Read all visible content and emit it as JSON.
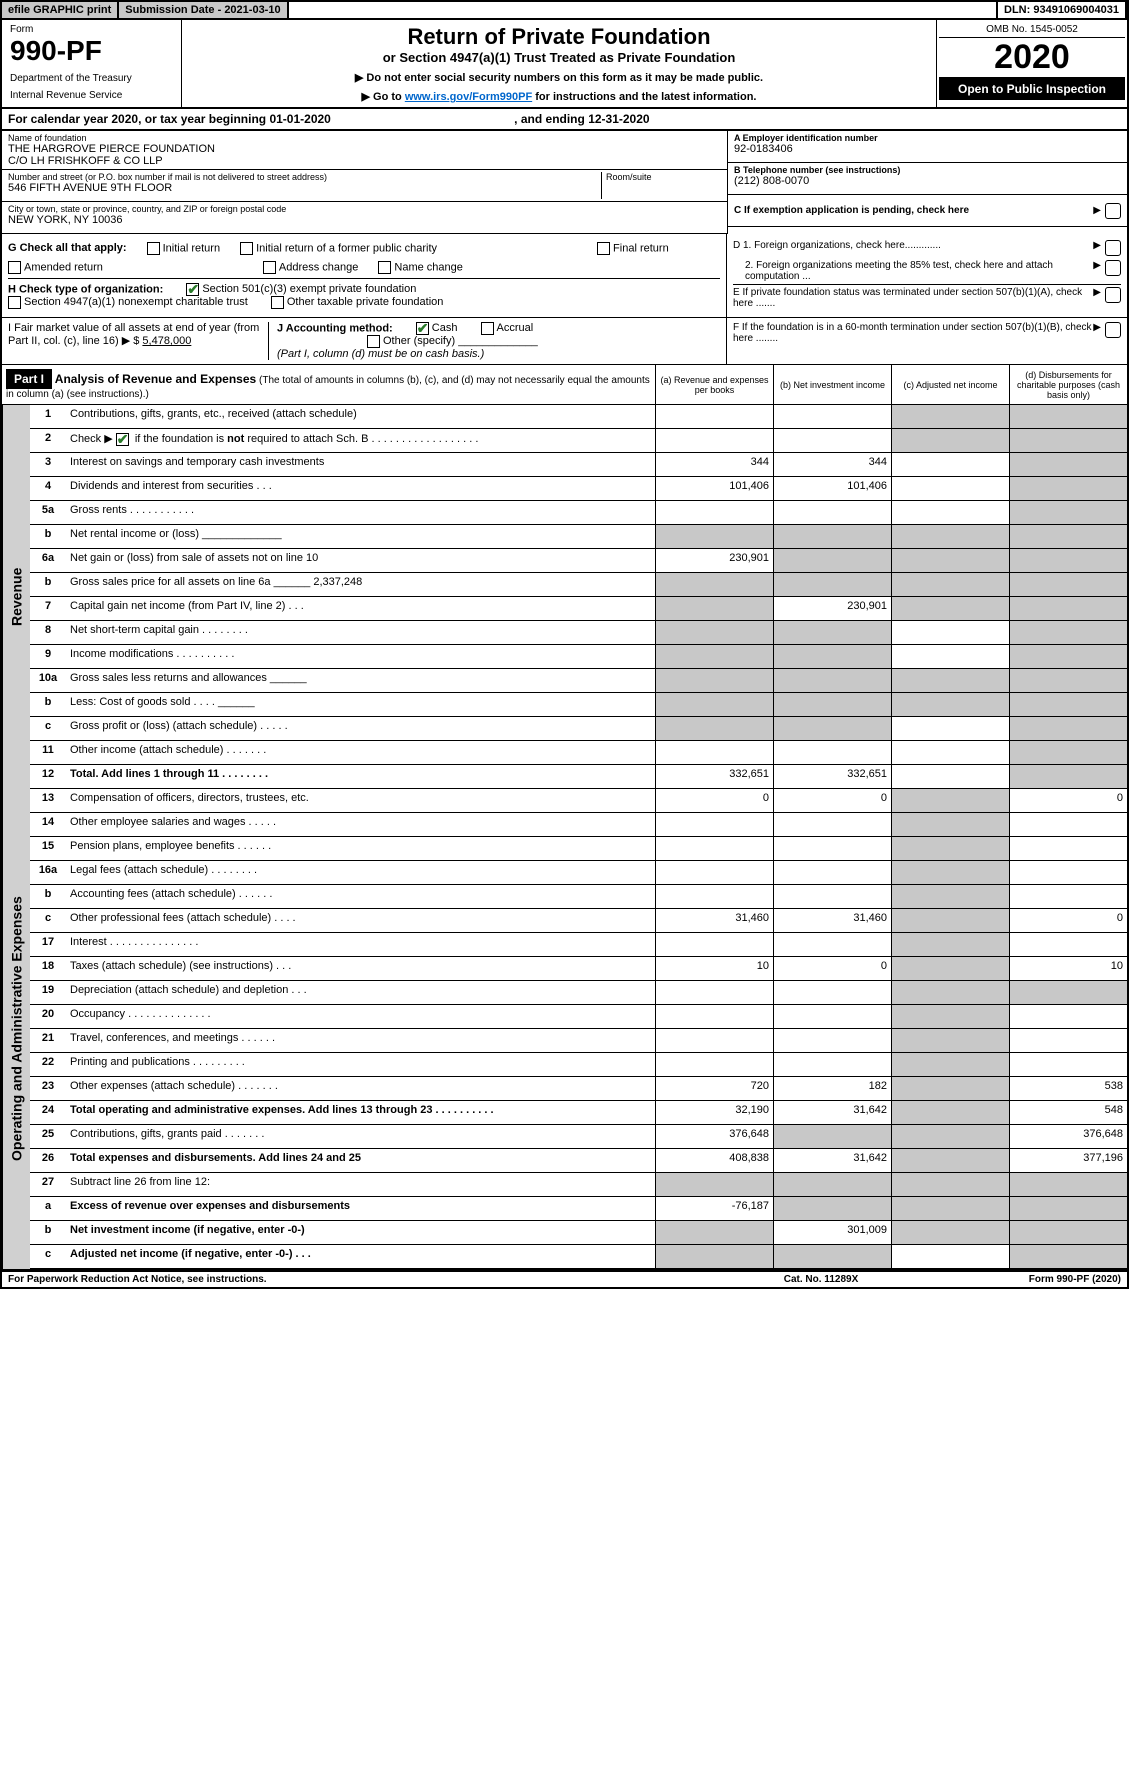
{
  "topbar": {
    "efile": "efile GRAPHIC print",
    "subdate_label": "Submission Date - 2021-03-10",
    "dln": "DLN: 93491069004031"
  },
  "header": {
    "form_label": "Form",
    "form_num": "990-PF",
    "dept1": "Department of the Treasury",
    "dept2": "Internal Revenue Service",
    "title": "Return of Private Foundation",
    "subtitle": "or Section 4947(a)(1) Trust Treated as Private Foundation",
    "note1": "▶ Do not enter social security numbers on this form as it may be made public.",
    "note2_pre": "▶ Go to ",
    "note2_link": "www.irs.gov/Form990PF",
    "note2_post": " for instructions and the latest information.",
    "omb": "OMB No. 1545-0052",
    "year": "2020",
    "open_pub": "Open to Public Inspection"
  },
  "cal_year": {
    "pre": "For calendar year 2020, or tax year beginning ",
    "begin": "01-01-2020",
    "mid": " , and ending ",
    "end": "12-31-2020"
  },
  "ident": {
    "name_lbl": "Name of foundation",
    "name1": "THE HARGROVE PIERCE FOUNDATION",
    "name2": "C/O LH FRISHKOFF & CO LLP",
    "addr_lbl": "Number and street (or P.O. box number if mail is not delivered to street address)",
    "addr": "546 FIFTH AVENUE 9TH FLOOR",
    "room_lbl": "Room/suite",
    "city_lbl": "City or town, state or province, country, and ZIP or foreign postal code",
    "city": "NEW YORK, NY  10036",
    "a_lbl": "A Employer identification number",
    "a_val": "92-0183406",
    "b_lbl": "B Telephone number (see instructions)",
    "b_val": "(212) 808-0070",
    "c_lbl": "C If exemption application is pending, check here",
    "d1": "D 1. Foreign organizations, check here.............",
    "d2": "2. Foreign organizations meeting the 85% test, check here and attach computation ...",
    "e": "E  If private foundation status was terminated under section 507(b)(1)(A), check here .......",
    "f": "F  If the foundation is in a 60-month termination under section 507(b)(1)(B), check here ........"
  },
  "g": {
    "label": "G Check all that apply:",
    "opts": [
      "Initial return",
      "Initial return of a former public charity",
      "Final return",
      "Amended return",
      "Address change",
      "Name change"
    ]
  },
  "h": {
    "label": "H Check type of organization:",
    "opt1": "Section 501(c)(3) exempt private foundation",
    "opt2": "Section 4947(a)(1) nonexempt charitable trust",
    "opt3": "Other taxable private foundation"
  },
  "i": {
    "label": "I Fair market value of all assets at end of year (from Part II, col. (c), line 16) ▶ $",
    "val": "5,478,000"
  },
  "j": {
    "label": "J Accounting method:",
    "cash": "Cash",
    "accrual": "Accrual",
    "other": "Other (specify)",
    "note": "(Part I, column (d) must be on cash basis.)"
  },
  "part1": {
    "tag": "Part I",
    "title": "Analysis of Revenue and Expenses",
    "title_note": "(The total of amounts in columns (b), (c), and (d) may not necessarily equal the amounts in column (a) (see instructions).)",
    "col_a": "(a)    Revenue and expenses per books",
    "col_b": "(b)  Net investment income",
    "col_c": "(c)  Adjusted net income",
    "col_d": "(d)  Disbursements for charitable purposes (cash basis only)"
  },
  "side_rev": "Revenue",
  "side_exp": "Operating and Administrative Expenses",
  "rows_rev": [
    {
      "n": "1",
      "d": "Contributions, gifts, grants, etc., received (attach schedule)",
      "a": "",
      "b": "",
      "c": "s",
      "dd": "s"
    },
    {
      "n": "2",
      "d": "Check ▶ ☑ if the foundation is not required to attach Sch. B",
      "a": "",
      "b": "",
      "c": "s",
      "dd": "s",
      "bold": false,
      "checked": true
    },
    {
      "n": "3",
      "d": "Interest on savings and temporary cash investments",
      "a": "344",
      "b": "344",
      "c": "",
      "dd": "s"
    },
    {
      "n": "4",
      "d": "Dividends and interest from securities   .   .   .",
      "a": "101,406",
      "b": "101,406",
      "c": "",
      "dd": "s"
    },
    {
      "n": "5a",
      "d": "Gross rents   .   .   .   .   .   .   .   .   .   .   .",
      "a": "",
      "b": "",
      "c": "",
      "dd": "s"
    },
    {
      "n": "b",
      "d": "Net rental income or (loss)  _____________",
      "a": "s",
      "b": "s",
      "c": "s",
      "dd": "s"
    },
    {
      "n": "6a",
      "d": "Net gain or (loss) from sale of assets not on line 10",
      "a": "230,901",
      "b": "s",
      "c": "s",
      "dd": "s"
    },
    {
      "n": "b",
      "d": "Gross sales price for all assets on line 6a ______ 2,337,248",
      "a": "s",
      "b": "s",
      "c": "s",
      "dd": "s"
    },
    {
      "n": "7",
      "d": "Capital gain net income (from Part IV, line 2)   .   .   .",
      "a": "s",
      "b": "230,901",
      "c": "s",
      "dd": "s"
    },
    {
      "n": "8",
      "d": "Net short-term capital gain   .   .   .   .   .   .   .   .",
      "a": "s",
      "b": "s",
      "c": "",
      "dd": "s"
    },
    {
      "n": "9",
      "d": "Income modifications   .   .   .   .   .   .   .   .   .   .",
      "a": "s",
      "b": "s",
      "c": "",
      "dd": "s"
    },
    {
      "n": "10a",
      "d": "Gross sales less returns and allowances  ______",
      "a": "s",
      "b": "s",
      "c": "s",
      "dd": "s"
    },
    {
      "n": "b",
      "d": "Less: Cost of goods sold   .   .   .   .  ______",
      "a": "s",
      "b": "s",
      "c": "s",
      "dd": "s"
    },
    {
      "n": "c",
      "d": "Gross profit or (loss) (attach schedule)   .   .   .   .   .",
      "a": "s",
      "b": "s",
      "c": "",
      "dd": "s"
    },
    {
      "n": "11",
      "d": "Other income (attach schedule)   .   .   .   .   .   .   .",
      "a": "",
      "b": "",
      "c": "",
      "dd": "s"
    },
    {
      "n": "12",
      "d": "Total. Add lines 1 through 11   .   .   .   .   .   .   .   .",
      "a": "332,651",
      "b": "332,651",
      "c": "",
      "dd": "s",
      "bold": true
    }
  ],
  "rows_exp": [
    {
      "n": "13",
      "d": "Compensation of officers, directors, trustees, etc.",
      "a": "0",
      "b": "0",
      "c": "s",
      "dd": "0"
    },
    {
      "n": "14",
      "d": "Other employee salaries and wages   .   .   .   .   .",
      "a": "",
      "b": "",
      "c": "s",
      "dd": ""
    },
    {
      "n": "15",
      "d": "Pension plans, employee benefits   .   .   .   .   .   .",
      "a": "",
      "b": "",
      "c": "s",
      "dd": ""
    },
    {
      "n": "16a",
      "d": "Legal fees (attach schedule)   .   .   .   .   .   .   .   .",
      "a": "",
      "b": "",
      "c": "s",
      "dd": ""
    },
    {
      "n": "b",
      "d": "Accounting fees (attach schedule)   .   .   .   .   .   .",
      "a": "",
      "b": "",
      "c": "s",
      "dd": ""
    },
    {
      "n": "c",
      "d": "Other professional fees (attach schedule)   .   .   .   .",
      "a": "31,460",
      "b": "31,460",
      "c": "s",
      "dd": "0"
    },
    {
      "n": "17",
      "d": "Interest   .   .   .   .   .   .   .   .   .   .   .   .   .   .   .",
      "a": "",
      "b": "",
      "c": "s",
      "dd": ""
    },
    {
      "n": "18",
      "d": "Taxes (attach schedule) (see instructions)   .   .   .",
      "a": "10",
      "b": "0",
      "c": "s",
      "dd": "10"
    },
    {
      "n": "19",
      "d": "Depreciation (attach schedule) and depletion   .   .   .",
      "a": "",
      "b": "",
      "c": "s",
      "dd": "s"
    },
    {
      "n": "20",
      "d": "Occupancy   .   .   .   .   .   .   .   .   .   .   .   .   .   .",
      "a": "",
      "b": "",
      "c": "s",
      "dd": ""
    },
    {
      "n": "21",
      "d": "Travel, conferences, and meetings   .   .   .   .   .   .",
      "a": "",
      "b": "",
      "c": "s",
      "dd": ""
    },
    {
      "n": "22",
      "d": "Printing and publications   .   .   .   .   .   .   .   .   .",
      "a": "",
      "b": "",
      "c": "s",
      "dd": ""
    },
    {
      "n": "23",
      "d": "Other expenses (attach schedule)   .   .   .   .   .   .   .",
      "a": "720",
      "b": "182",
      "c": "s",
      "dd": "538"
    },
    {
      "n": "24",
      "d": "Total operating and administrative expenses. Add lines 13 through 23   .   .   .   .   .   .   .   .   .   .",
      "a": "32,190",
      "b": "31,642",
      "c": "s",
      "dd": "548",
      "bold": true
    },
    {
      "n": "25",
      "d": "Contributions, gifts, grants paid   .   .   .   .   .   .   .",
      "a": "376,648",
      "b": "s",
      "c": "s",
      "dd": "376,648"
    },
    {
      "n": "26",
      "d": "Total expenses and disbursements. Add lines 24 and 25",
      "a": "408,838",
      "b": "31,642",
      "c": "s",
      "dd": "377,196",
      "bold": true
    },
    {
      "n": "27",
      "d": "Subtract line 26 from line 12:",
      "a": "s",
      "b": "s",
      "c": "s",
      "dd": "s"
    },
    {
      "n": "a",
      "d": "Excess of revenue over expenses and disbursements",
      "a": "-76,187",
      "b": "s",
      "c": "s",
      "dd": "s",
      "bold": true
    },
    {
      "n": "b",
      "d": "Net investment income (if negative, enter -0-)",
      "a": "s",
      "b": "301,009",
      "c": "s",
      "dd": "s",
      "bold": true
    },
    {
      "n": "c",
      "d": "Adjusted net income (if negative, enter -0-)   .   .   .",
      "a": "s",
      "b": "s",
      "c": "",
      "dd": "s",
      "bold": true
    }
  ],
  "footer": {
    "left": "For Paperwork Reduction Act Notice, see instructions.",
    "mid": "Cat. No. 11289X",
    "right": "Form 990-PF (2020)"
  }
}
